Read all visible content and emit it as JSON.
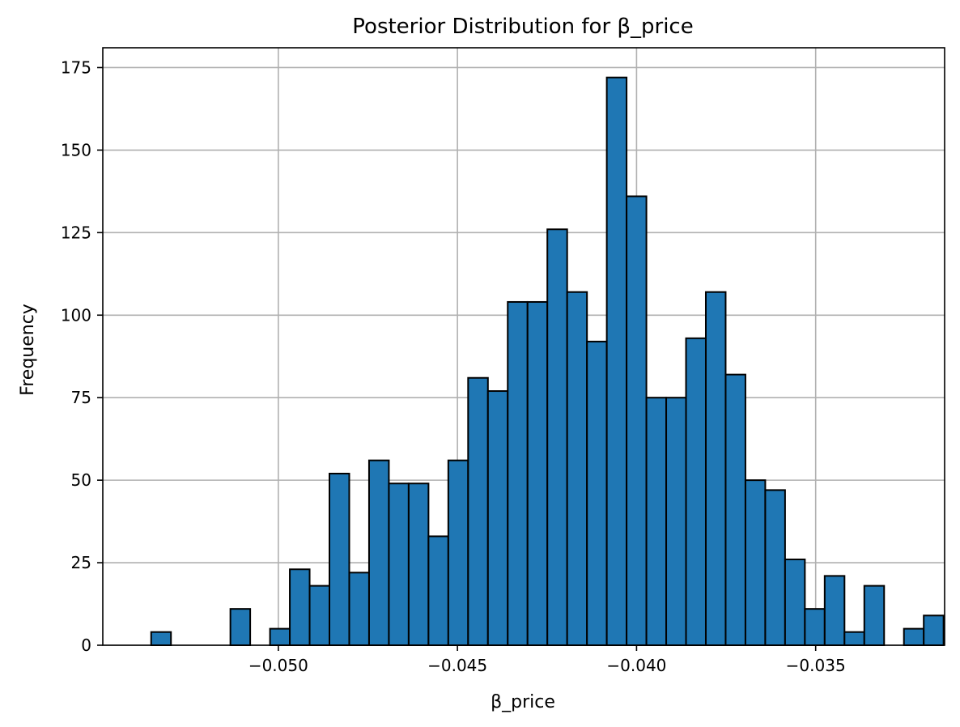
{
  "chart_data": {
    "type": "bar",
    "title": "Posterior Distribution for β_price",
    "xlabel": "β_price",
    "ylabel": "Frequency",
    "xlim": [
      -0.0549,
      -0.0314
    ],
    "ylim": [
      0,
      181
    ],
    "grid": true,
    "bar_color": "#1f77b4",
    "edge_color": "#000000",
    "xticks": [
      -0.05,
      -0.045,
      -0.04,
      -0.035
    ],
    "xtick_labels": [
      "−0.050",
      "−0.045",
      "−0.040",
      "−0.035"
    ],
    "yticks": [
      0,
      25,
      50,
      75,
      100,
      125,
      150,
      175
    ],
    "ytick_labels": [
      "0",
      "25",
      "50",
      "75",
      "100",
      "125",
      "150",
      "175"
    ],
    "bins": {
      "start": -0.05355,
      "width": 0.000553,
      "counts": [
        4,
        0,
        0,
        0,
        11,
        0,
        5,
        23,
        18,
        52,
        22,
        56,
        49,
        49,
        33,
        56,
        81,
        77,
        104,
        104,
        126,
        107,
        92,
        172,
        136,
        75,
        75,
        93,
        107,
        82,
        50,
        47,
        26,
        11,
        21,
        4,
        18,
        0,
        5,
        9
      ]
    }
  }
}
